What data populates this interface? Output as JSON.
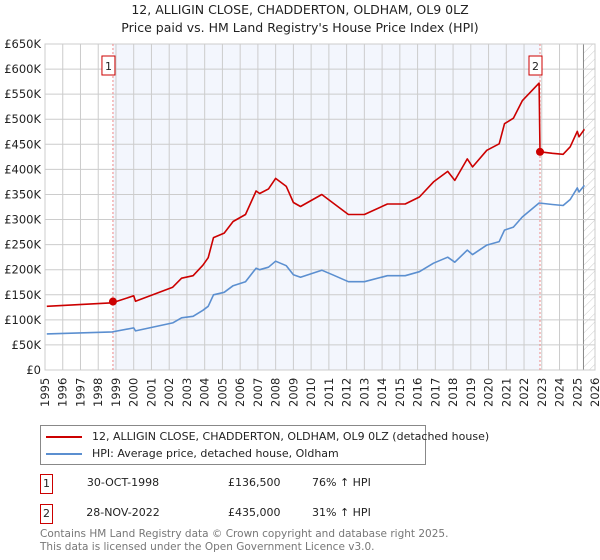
{
  "title": {
    "line1": "12, ALLIGIN CLOSE, CHADDERTON, OLDHAM, OL9 0LZ",
    "line2": "Price paid vs. HM Land Registry's House Price Index (HPI)"
  },
  "chart_data": {
    "type": "line",
    "ylim": [
      0,
      650000
    ],
    "xlim": [
      1995,
      2026
    ],
    "grid": true,
    "yticks": [
      {
        "v": 0,
        "label": "£0"
      },
      {
        "v": 50000,
        "label": "£50K"
      },
      {
        "v": 100000,
        "label": "£100K"
      },
      {
        "v": 150000,
        "label": "£150K"
      },
      {
        "v": 200000,
        "label": "£200K"
      },
      {
        "v": 250000,
        "label": "£250K"
      },
      {
        "v": 300000,
        "label": "£300K"
      },
      {
        "v": 350000,
        "label": "£350K"
      },
      {
        "v": 400000,
        "label": "£400K"
      },
      {
        "v": 450000,
        "label": "£450K"
      },
      {
        "v": 500000,
        "label": "£500K"
      },
      {
        "v": 550000,
        "label": "£550K"
      },
      {
        "v": 600000,
        "label": "£600K"
      },
      {
        "v": 650000,
        "label": "£650K"
      }
    ],
    "xticks": [
      "1995",
      "1996",
      "1997",
      "1998",
      "1999",
      "2000",
      "2001",
      "2002",
      "2003",
      "2004",
      "2005",
      "2006",
      "2007",
      "2008",
      "2009",
      "2010",
      "2011",
      "2012",
      "2013",
      "2014",
      "2015",
      "2016",
      "2017",
      "2018",
      "2019",
      "2020",
      "2021",
      "2022",
      "2023",
      "2024",
      "2025",
      "2026"
    ],
    "series": [
      {
        "name": "12, ALLIGIN CLOSE, CHADDERTON, OLDHAM, OL9 0LZ (detached house)",
        "color": "#cc0000",
        "x": [
          1995.1,
          1998.8,
          2000.0,
          2000.1,
          2002.2,
          2002.7,
          2003.35,
          2003.9,
          2004.2,
          2004.5,
          2005.1,
          2005.6,
          2006.3,
          2006.9,
          2007.1,
          2007.6,
          2008.0,
          2008.6,
          2009.0,
          2009.4,
          2010.6,
          2011.2,
          2012.1,
          2013.0,
          2014.3,
          2015.3,
          2016.1,
          2016.9,
          2017.7,
          2018.1,
          2018.8,
          2019.1,
          2019.9,
          2020.6,
          2020.9,
          2021.4,
          2021.9,
          2022.85,
          2022.9,
          2023.6,
          2024.2,
          2024.6,
          2025.0,
          2025.1,
          2025.4
        ],
        "y": [
          127000,
          134000,
          148000,
          137000,
          165000,
          183000,
          188000,
          209000,
          224000,
          264000,
          273000,
          296000,
          310000,
          357000,
          352000,
          361000,
          382000,
          366000,
          334000,
          326000,
          350000,
          334000,
          310000,
          310000,
          331000,
          331000,
          345000,
          375000,
          396000,
          378000,
          421000,
          405000,
          438000,
          451000,
          491000,
          502000,
          537000,
          572000,
          435000,
          432000,
          430000,
          445000,
          476000,
          465000,
          480000
        ]
      },
      {
        "name": "HPI: Average price, detached house, Oldham",
        "color": "#5b8fd0",
        "x": [
          1995.1,
          1998.8,
          2000.0,
          2000.1,
          2002.2,
          2002.7,
          2003.35,
          2003.9,
          2004.2,
          2004.5,
          2005.1,
          2005.6,
          2006.3,
          2006.9,
          2007.1,
          2007.6,
          2008.0,
          2008.6,
          2009.0,
          2009.4,
          2010.6,
          2011.2,
          2012.1,
          2013.0,
          2014.3,
          2015.3,
          2016.1,
          2016.9,
          2017.7,
          2018.1,
          2018.8,
          2019.1,
          2019.9,
          2020.6,
          2020.9,
          2021.4,
          2021.9,
          2022.85,
          2023.6,
          2024.2,
          2024.6,
          2025.0,
          2025.1,
          2025.4
        ],
        "y": [
          72000,
          76000,
          84000,
          78000,
          94000,
          104000,
          107000,
          119000,
          127000,
          150000,
          155000,
          168000,
          176000,
          203000,
          200000,
          205000,
          217000,
          208000,
          190000,
          185000,
          199000,
          190000,
          176000,
          176000,
          188000,
          188000,
          196000,
          213000,
          225000,
          215000,
          239000,
          230000,
          249000,
          256000,
          279000,
          285000,
          305000,
          333000,
          330000,
          328000,
          340000,
          363000,
          355000,
          368000
        ]
      }
    ],
    "sales": [
      {
        "n": "1",
        "year": 1998.83,
        "price": 136500,
        "date": "30-OCT-1998",
        "price_label": "£136,500",
        "hpi_label": "76% ↑ HPI"
      },
      {
        "n": "2",
        "year": 2022.9,
        "price": 435000,
        "date": "28-NOV-2022",
        "price_label": "£435,000",
        "hpi_label": "31% ↑ HPI"
      }
    ],
    "forecast_start": 2025.35
  },
  "legend": {
    "red": "12, ALLIGIN CLOSE, CHADDERTON, OLDHAM, OL9 0LZ (detached house)",
    "blue": "HPI: Average price, detached house, Oldham"
  },
  "footer": {
    "line1": "Contains HM Land Registry data © Crown copyright and database right 2025.",
    "line2": "This data is licensed under the Open Government Licence v3.0."
  }
}
